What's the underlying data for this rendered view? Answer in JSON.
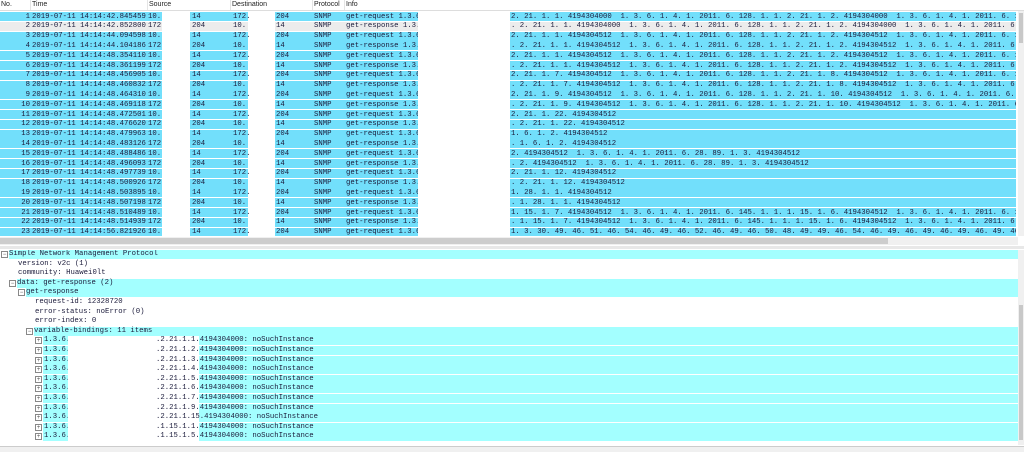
{
  "columns": {
    "no": "No.",
    "time": "Time",
    "source": "Source",
    "destination": "Destination",
    "protocol": "Protocol",
    "info": "Info"
  },
  "colors": {
    "packet_row": "#72dffb",
    "selected_row": "#ececec",
    "detail_highlight": "#a3ffff"
  },
  "selected_packet": 2,
  "packets": [
    {
      "no": "1",
      "time": "2019-07-11 14:14:42.845459",
      "src": "10.",
      "src2": "14",
      "dst": "172.",
      "dst2": "204",
      "proto": "SNMP",
      "info": "get-request 1.3.6",
      "info2": "2. 21. 1. 1. 4194304000  1. 3. 6. 1. 4. 1. 2011. 6. 128. 1. 1. 2. 21. 1. 2. 4194304000  1. 3. 6. 1. 4. 1. 2011. 6. 128. 1. 1. 2. 21. 1. 3. 4194304000  1. 3."
    },
    {
      "no": "2",
      "time": "2019-07-11 14:14:42.852800",
      "src": "172",
      "src2": "204",
      "dst": "10.",
      "dst2": "14",
      "proto": "SNMP",
      "info": "get-response 1.3.",
      "info2": ". 2. 21. 1. 1. 4194304000  1. 3. 6. 1. 4. 1. 2011. 6. 128. 1. 1. 2. 21. 1. 2. 4194304000  1. 3. 6. 1. 4. 1. 2011. 6. 128. 1. 1. 2. 21. 1. 3. 4194304000  1. 3."
    },
    {
      "no": "3",
      "time": "2019-07-11 14:14:44.094598",
      "src": "10.",
      "src2": "14",
      "dst": "172.",
      "dst2": "204",
      "proto": "SNMP",
      "info": "get-request 1.3.6",
      "info2": "2. 21. 1. 1. 4194304512  1. 3. 6. 1. 4. 1. 2011. 6. 128. 1. 1. 2. 21. 1. 2. 4194304512  1. 3. 6. 1. 4. 1. 2011. 6. 128. 1. 1. 2. 21. 1. 3. 4194304512  1. 3."
    },
    {
      "no": "4",
      "time": "2019-07-11 14:14:44.104186",
      "src": "172",
      "src2": "204",
      "dst": "10.",
      "dst2": "14",
      "proto": "SNMP",
      "info": "get-response 1.3.",
      "info2": ". 2. 21. 1. 1. 4194304512  1. 3. 6. 1. 4. 1. 2011. 6. 128. 1. 1. 2. 21. 1. 2. 4194304512  1. 3. 6. 1. 4. 1. 2011. 6. 128. 1. 1. 2. 21. 1. 3. 4194304512  1. 3"
    },
    {
      "no": "5",
      "time": "2019-07-11 14:14:48.354110",
      "src": "10.",
      "src2": "14",
      "dst": "172.",
      "dst2": "204",
      "proto": "SNMP",
      "info": "get-request 1.3.6",
      "info2": "2. 21. 1. 1. 4194304512  1. 3. 6. 1. 4. 1. 2011. 6. 128. 1. 1. 2. 21. 1. 2. 4194304512  1. 3. 6. 1. 4. 1. 2011. 6. 128. 1. 1. 2. 21. 1. 3. 4194304512  1. 3."
    },
    {
      "no": "6",
      "time": "2019-07-11 14:14:48.361199",
      "src": "172",
      "src2": "204",
      "dst": "10.",
      "dst2": "14",
      "proto": "SNMP",
      "info": "get-response 1.3.",
      "info2": ". 2. 21. 1. 1. 4194304512  1. 3. 6. 1. 4. 1. 2011. 6. 128. 1. 1. 2. 21. 1. 2. 4194304512  1. 3. 6. 1. 4. 1. 2011. 6. 128. 1. 1. 2. 21. 1. 3. 4194304512  1. 3"
    },
    {
      "no": "7",
      "time": "2019-07-11 14:14:48.456905",
      "src": "10.",
      "src2": "14",
      "dst": "172.",
      "dst2": "204",
      "proto": "SNMP",
      "info": "get-request 1.3.6",
      "info2": "2. 21. 1. 7. 4194304512  1. 3. 6. 1. 4. 1. 2011. 6. 128. 1. 1. 2. 21. 1. 8. 4194304512  1. 3. 6. 1. 4. 1. 2011. 6. 128. 1. 1. 2. 21. 1. 14. 4194304512"
    },
    {
      "no": "8",
      "time": "2019-07-11 14:14:48.460832",
      "src": "172",
      "src2": "204",
      "dst": "10.",
      "dst2": "14",
      "proto": "SNMP",
      "info": "get-response 1.3.",
      "info2": ". 2. 21. 1. 7. 4194304512  1. 3. 6. 1. 4. 1. 2011. 6. 128. 1. 1. 2. 21. 1. 8. 4194304512  1. 3. 6. 1. 4. 1. 2011. 6. 128. 1. 1. 2. 21. 1. 14. 4194304512"
    },
    {
      "no": "9",
      "time": "2019-07-11 14:14:48.464310",
      "src": "10.",
      "src2": "14",
      "dst": "172.",
      "dst2": "204",
      "proto": "SNMP",
      "info": "get-request 1.3.6",
      "info2": "2. 21. 1. 9. 4194304512  1. 3. 6. 1. 4. 1. 2011. 6. 128. 1. 1. 2. 21. 1. 10. 4194304512  1. 3. 6. 1. 4. 1. 2011. 6. 128. 1. 1. 2. 21. 1. 22. 4194304512  1."
    },
    {
      "no": "10",
      "time": "2019-07-11 14:14:48.469118",
      "src": "172",
      "src2": "204",
      "dst": "10.",
      "dst2": "14",
      "proto": "SNMP",
      "info": "get-response 1.3.",
      "info2": ". 2. 21. 1. 9. 4194304512  1. 3. 6. 1. 4. 1. 2011. 6. 128. 1. 1. 2. 21. 1. 10. 4194304512  1. 3. 6. 1. 4. 1. 2011. 6. 128. 1. 1. 2. 21. 1. 22. 4194304512  1"
    },
    {
      "no": "11",
      "time": "2019-07-11 14:14:48.472501",
      "src": "10.",
      "src2": "14",
      "dst": "172.",
      "dst2": "204",
      "proto": "SNMP",
      "info": "get-request 1.3.6",
      "info2": "2. 21. 1. 22. 4194304512"
    },
    {
      "no": "12",
      "time": "2019-07-11 14:14:48.476620",
      "src": "172",
      "src2": "204",
      "dst": "10.",
      "dst2": "14",
      "proto": "SNMP",
      "info": "get-response 1.3.",
      "info2": ". 2. 21. 1. 22. 4194304512"
    },
    {
      "no": "13",
      "time": "2019-07-11 14:14:48.479963",
      "src": "10.",
      "src2": "14",
      "dst": "172.",
      "dst2": "204",
      "proto": "SNMP",
      "info": "get-request 1.3.6",
      "info2": "1. 6. 1. 2. 4194304512"
    },
    {
      "no": "14",
      "time": "2019-07-11 14:14:48.483126",
      "src": "172",
      "src2": "204",
      "dst": "10.",
      "dst2": "14",
      "proto": "SNMP",
      "info": "get-response 1.3.",
      "info2": ". 1. 6. 1. 2. 4194304512"
    },
    {
      "no": "15",
      "time": "2019-07-11 14:14:48.488486",
      "src": "10.",
      "src2": "14",
      "dst": "172.",
      "dst2": "204",
      "proto": "SNMP",
      "info": "get-request 1.3.6",
      "info2": "2. 4194304512  1. 3. 6. 1. 4. 1. 2011. 6. 28. 89. 1. 3. 4194304512"
    },
    {
      "no": "16",
      "time": "2019-07-11 14:14:48.496093",
      "src": "172",
      "src2": "204",
      "dst": "10.",
      "dst2": "14",
      "proto": "SNMP",
      "info": "get-response 1.3.",
      "info2": ". 2. 4194304512  1. 3. 6. 1. 4. 1. 2011. 6. 28. 89. 1. 3. 4194304512"
    },
    {
      "no": "17",
      "time": "2019-07-11 14:14:48.497739",
      "src": "10.",
      "src2": "14",
      "dst": "172.",
      "dst2": "204",
      "proto": "SNMP",
      "info": "get-request 1.3.6",
      "info2": "2. 21. 1. 12. 4194304512"
    },
    {
      "no": "18",
      "time": "2019-07-11 14:14:48.500926",
      "src": "172",
      "src2": "204",
      "dst": "10.",
      "dst2": "14",
      "proto": "SNMP",
      "info": "get-response 1.3.",
      "info2": ". 2. 21. 1. 12. 4194304512"
    },
    {
      "no": "19",
      "time": "2019-07-11 14:14:48.503895",
      "src": "10.",
      "src2": "14",
      "dst": "172.",
      "dst2": "204",
      "proto": "SNMP",
      "info": "get-request 1.3.6",
      "info2": "1. 28. 1. 1. 4194304512"
    },
    {
      "no": "20",
      "time": "2019-07-11 14:14:48.507198",
      "src": "172",
      "src2": "204",
      "dst": "10.",
      "dst2": "14",
      "proto": "SNMP",
      "info": "get-response 1.3.",
      "info2": ". 1. 28. 1. 1. 4194304512"
    },
    {
      "no": "21",
      "time": "2019-07-11 14:14:48.510489",
      "src": "10.",
      "src2": "14",
      "dst": "172.",
      "dst2": "204",
      "proto": "SNMP",
      "info": "get-request 1.3.6",
      "info2": "1. 15. 1. 7. 4194304512  1. 3. 6. 1. 4. 1. 2011. 6. 145. 1. 1. 1. 15. 1. 6. 4194304512  1. 3. 6. 1. 4. 1. 2011. 6. 145. 1. 1. 1. 15. 1. 9. 4194304512  1. 3."
    },
    {
      "no": "22",
      "time": "2019-07-11 14:14:48.514939",
      "src": "172",
      "src2": "204",
      "dst": "10.",
      "dst2": "14",
      "proto": "SNMP",
      "info": "get-response 1.3.",
      "info2": ". 1. 15. 1. 7. 4194304512  1. 3. 6. 1. 4. 1. 2011. 6. 145. 1. 1. 1. 15. 1. 6. 4194304512  1. 3. 6. 1. 4. 1. 2011. 6. 145. 1. 1. 1. 15. 1. 9. 4194304512  1. 3"
    },
    {
      "no": "23",
      "time": "2019-07-11 14:14:56.821926",
      "src": "10.",
      "src2": "14",
      "dst": "172.",
      "dst2": "204",
      "proto": "SNMP",
      "info": "get-request 1.3.6",
      "info2": "1. 3. 30. 49. 46. 51. 46. 54. 46. 49. 46. 52. 46. 49. 46. 50. 48. 49. 49. 46. 54. 46. 49. 46. 49. 46. 49. 46. 49. 46. 55. 61. 48. 104. 119. 70. 97. 110. 69."
    }
  ],
  "detail": {
    "protocol": "Simple Network Management Protocol",
    "version": "version: v2c (1)",
    "community": "community: Huawei0lt",
    "data": "data: get-response (2)",
    "pdu": "get-response",
    "request_id": "request-id: 12328720",
    "error_status": "error-status: noError (0)",
    "error_index": "error-index: 0",
    "varbinds_label": "variable-bindings: 11 items",
    "varbinds": [
      {
        "prefix": "1.3.6.",
        "suffix": ".2.21.1.1.4194304000: noSuchInstance"
      },
      {
        "prefix": "1.3.6.",
        "suffix": ".2.21.1.2.4194304000: noSuchInstance"
      },
      {
        "prefix": "1.3.6.",
        "suffix": ".2.21.1.3.4194304000: noSuchInstance"
      },
      {
        "prefix": "1.3.6.",
        "suffix": ".2.21.1.4.4194304000: noSuchInstance"
      },
      {
        "prefix": "1.3.6.",
        "suffix": ".2.21.1.5.4194304000: noSuchInstance"
      },
      {
        "prefix": "1.3.6.",
        "suffix": ".2.21.1.6.4194304000: noSuchInstance"
      },
      {
        "prefix": "1.3.6.",
        "suffix": ".2.21.1.7.4194304000: noSuchInstance"
      },
      {
        "prefix": "1.3.6.",
        "suffix": ".2.21.1.9.4194304000: noSuchInstance"
      },
      {
        "prefix": "1.3.6.",
        "suffix": ".2.21.1.15.4194304000: noSuchInstance"
      },
      {
        "prefix": "1.3.6.",
        "suffix": ".1.15.1.1.4194304000: noSuchInstance"
      },
      {
        "prefix": "1.3.6.",
        "suffix": ".1.15.1.5.4194304000: noSuchInstance"
      }
    ]
  }
}
